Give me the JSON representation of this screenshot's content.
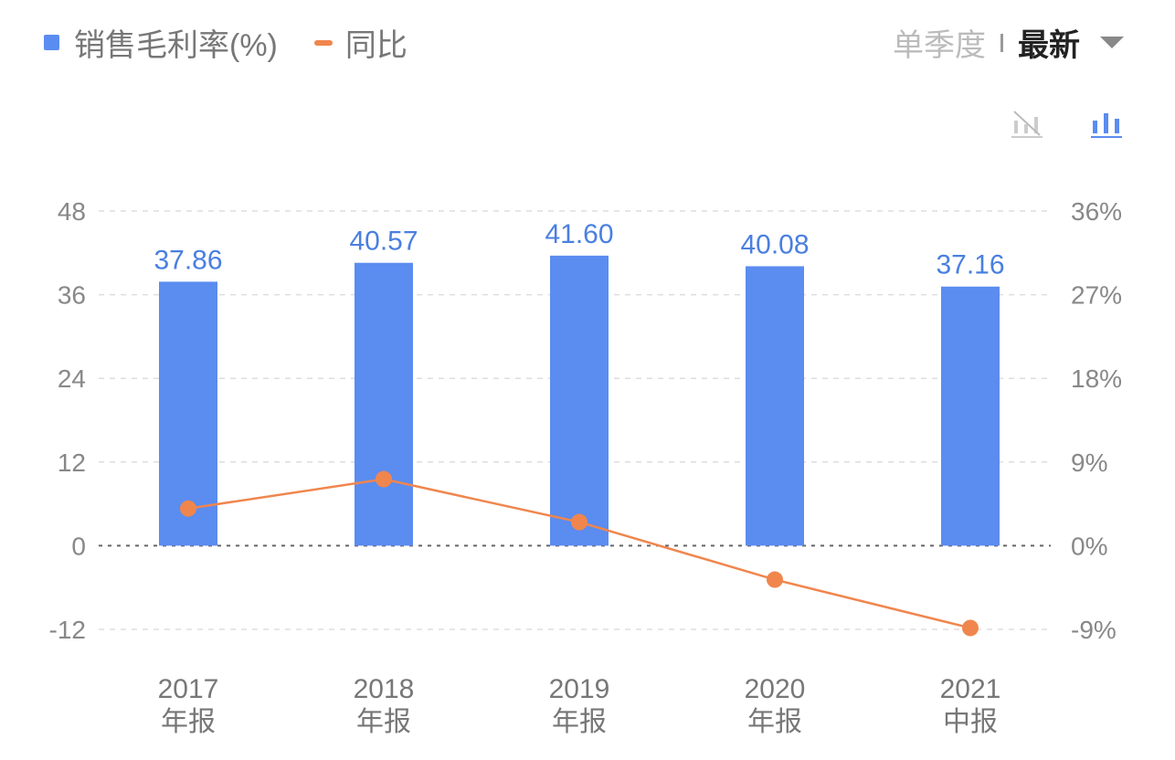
{
  "legend": {
    "bar_label": "销售毛利率(%)",
    "line_label": "同比"
  },
  "controls": {
    "quarter_label": "单季度",
    "latest_label": "最新",
    "dropdown_icon": "triangle-down-icon",
    "line_chart_icon": "line-chart-disabled-icon",
    "bar_chart_icon": "bar-chart-icon"
  },
  "colors": {
    "bar": "#5b8cf0",
    "line": "#f0864d",
    "label": "#4a7fe0"
  },
  "chart_data": {
    "type": "bar",
    "categories": [
      [
        "2017",
        "年报"
      ],
      [
        "2018",
        "年报"
      ],
      [
        "2019",
        "年报"
      ],
      [
        "2020",
        "年报"
      ],
      [
        "2021",
        "中报"
      ]
    ],
    "series": [
      {
        "name": "销售毛利率(%)",
        "type": "bar",
        "axis": "left",
        "values": [
          37.86,
          40.57,
          41.6,
          40.08,
          37.16
        ],
        "labels": [
          "37.86",
          "40.57",
          "41.60",
          "40.08",
          "37.16"
        ]
      },
      {
        "name": "同比",
        "type": "line",
        "axis": "right",
        "values": [
          4.0,
          7.16,
          2.54,
          -3.65,
          -8.85
        ]
      }
    ],
    "left_axis": {
      "ylim": [
        -12,
        48
      ],
      "ticks": [
        "48",
        "36",
        "24",
        "12",
        "0",
        "-12"
      ]
    },
    "right_axis": {
      "ylim": [
        -9,
        36
      ],
      "ticks": [
        "36%",
        "27%",
        "18%",
        "9%",
        "0%",
        "-9%"
      ]
    },
    "grid": true
  }
}
